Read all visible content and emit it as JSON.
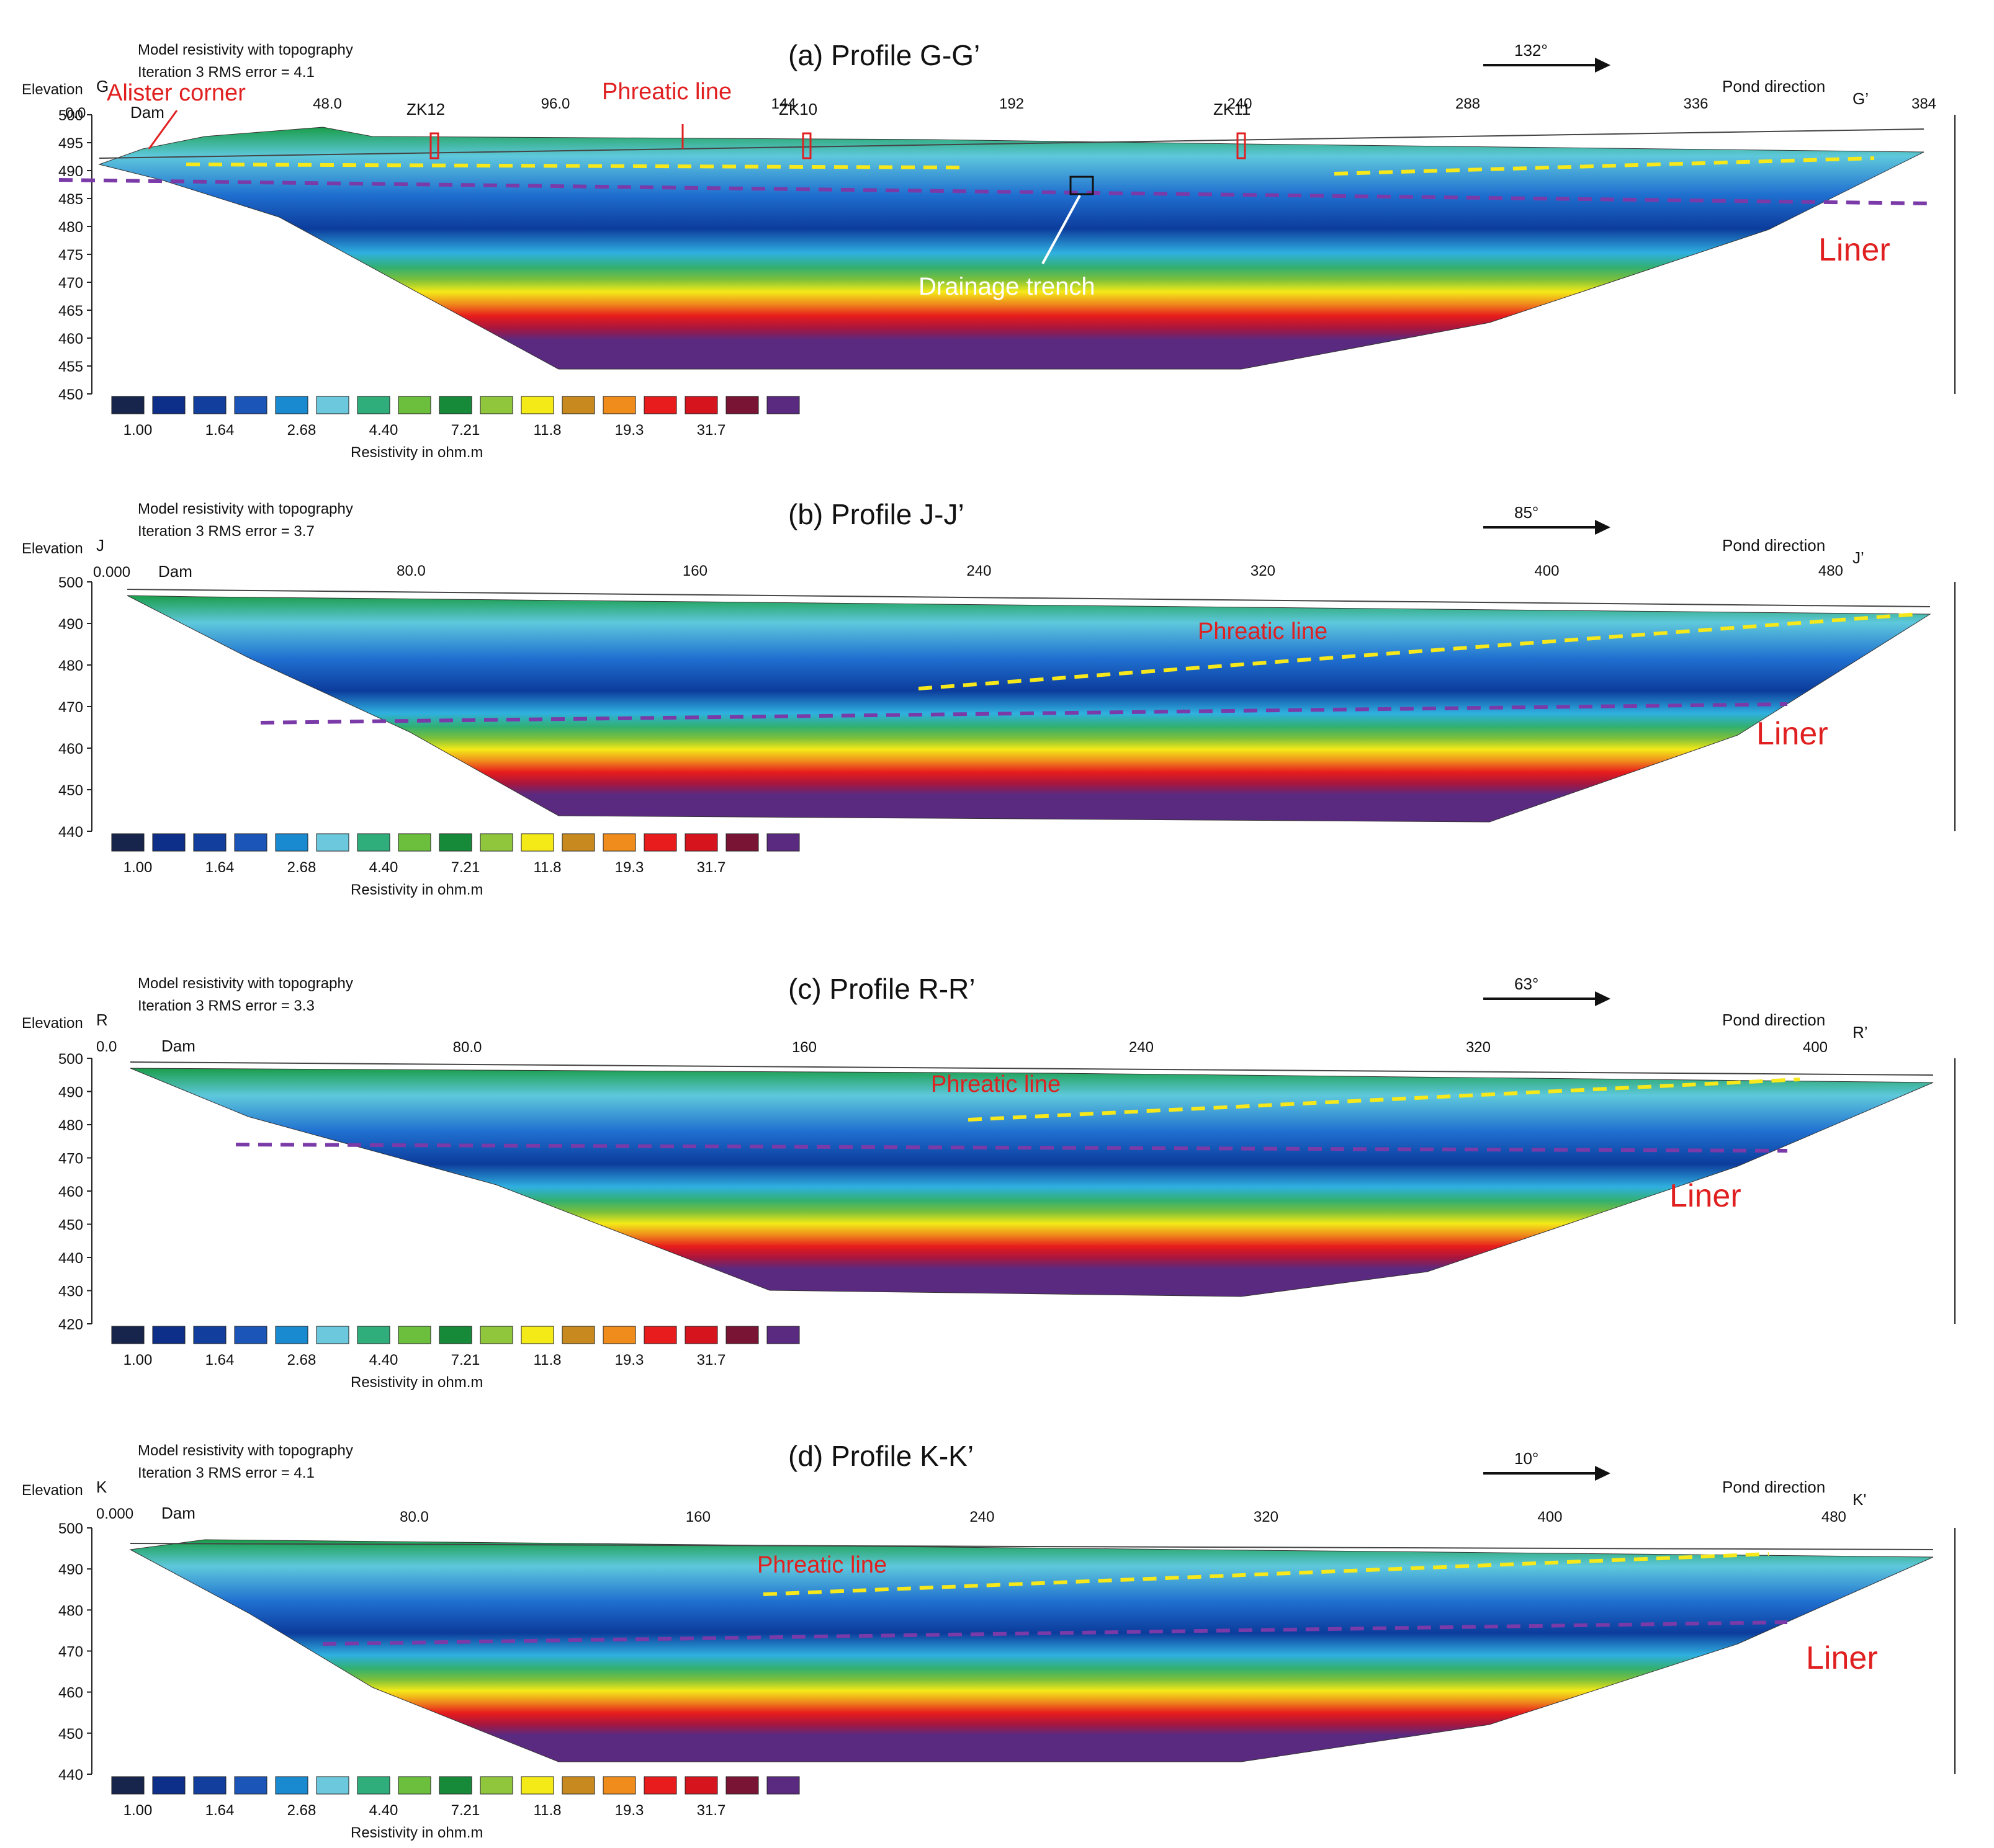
{
  "panels": [
    {
      "id": "a",
      "title": "(a) Profile G-G’",
      "header_line1": "Model resistivity with topography",
      "header_line2": "Iteration 3 RMS error = 4.1",
      "elevation_label": "Elevation",
      "start_label": "G",
      "end_label": "G’",
      "zero_label": "0.0",
      "direction_angle": "132°",
      "direction_label": "Pond direction",
      "dam_label": "Dam",
      "x_ticks": [
        "48.0",
        "96.0",
        "144",
        "192",
        "240",
        "288",
        "336",
        "384"
      ],
      "y_ticks": [
        "500",
        "495",
        "490",
        "485",
        "480",
        "475",
        "470",
        "465",
        "460",
        "455",
        "450"
      ],
      "annotations": {
        "phreatic": "Phreatic line",
        "liner": "Liner",
        "alister": "Alister corner",
        "drainage": "Drainage trench",
        "boreholes": [
          "ZK12",
          "ZK10",
          "ZK11"
        ]
      }
    },
    {
      "id": "b",
      "title": "(b) Profile J-J’",
      "header_line1": "Model resistivity with topography",
      "header_line2": "Iteration 3 RMS error = 3.7",
      "elevation_label": "Elevation",
      "start_label": "J",
      "end_label": "J’",
      "zero_label": "0.000",
      "direction_angle": "85°",
      "direction_label": "Pond direction",
      "dam_label": "Dam",
      "x_ticks": [
        "80.0",
        "160",
        "240",
        "320",
        "400",
        "480"
      ],
      "y_ticks": [
        "500",
        "490",
        "480",
        "470",
        "460",
        "450",
        "440"
      ],
      "annotations": {
        "phreatic": "Phreatic line",
        "liner": "Liner"
      }
    },
    {
      "id": "c",
      "title": "(c) Profile R-R’",
      "header_line1": "Model resistivity with topography",
      "header_line2": "Iteration 3 RMS error = 3.3",
      "elevation_label": "Elevation",
      "start_label": "R",
      "end_label": "R’",
      "zero_label": "0.0",
      "direction_angle": "63°",
      "direction_label": "Pond direction",
      "dam_label": "Dam",
      "x_ticks": [
        "80.0",
        "160",
        "240",
        "320",
        "400"
      ],
      "y_ticks": [
        "500",
        "490",
        "480",
        "470",
        "460",
        "450",
        "440",
        "430",
        "420"
      ],
      "annotations": {
        "phreatic": "Phreatic line",
        "liner": "Liner"
      }
    },
    {
      "id": "d",
      "title": "(d) Profile K-K’",
      "header_line1": "Model resistivity with topography",
      "header_line2": "Iteration 3 RMS error = 4.1",
      "elevation_label": "Elevation",
      "start_label": "K",
      "end_label": "K'",
      "zero_label": "0.000",
      "direction_angle": "10°",
      "direction_label": "Pond direction",
      "dam_label": "Dam",
      "x_ticks": [
        "80.0",
        "160",
        "240",
        "320",
        "400",
        "480"
      ],
      "y_ticks": [
        "500",
        "490",
        "480",
        "470",
        "460",
        "450",
        "440"
      ],
      "annotations": {
        "phreatic": "Phreatic line",
        "liner": "Liner"
      }
    }
  ],
  "legend": {
    "colors": [
      "#17254d",
      "#0d2f8a",
      "#123f9e",
      "#1c55b8",
      "#1a8ad0",
      "#6cc8dc",
      "#2fae7c",
      "#6cbf3c",
      "#178a3a",
      "#8fc63c",
      "#f4ea18",
      "#c88a1e",
      "#ef8c1c",
      "#e81c1c",
      "#d6141e",
      "#7a1434",
      "#5a2a80"
    ],
    "labels": [
      "1.00",
      "1.64",
      "2.68",
      "4.40",
      "7.21",
      "11.8",
      "19.3",
      "31.7"
    ],
    "title": "Resistivity in ohm.m"
  }
}
